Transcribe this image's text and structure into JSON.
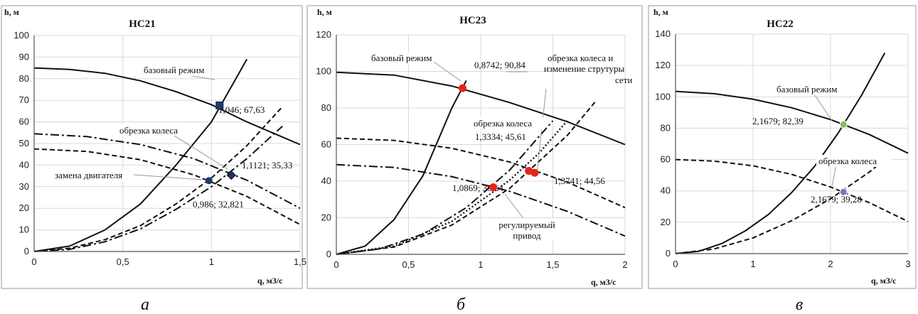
{
  "chart_data": [
    {
      "type": "line",
      "title": "НС21",
      "ylabel": "h, м",
      "xlabel": "q, м3/с",
      "xlim": [
        0,
        1.5
      ],
      "ylim": [
        0,
        100
      ],
      "xticks": [
        "0",
        "0,5",
        "1",
        "1,5"
      ],
      "yticks": [
        "0",
        "10",
        "20",
        "30",
        "40",
        "50",
        "60",
        "70",
        "80",
        "90",
        "100"
      ],
      "caption": "а",
      "series": [
        {
          "style": "solid",
          "x": [
            0,
            0.2,
            0.4,
            0.6,
            0.8,
            1.0,
            1.2,
            1.5
          ],
          "y": [
            85,
            84.3,
            82.5,
            79,
            74,
            68,
            60,
            49.5
          ]
        },
        {
          "style": "solid",
          "x": [
            0,
            0.2,
            0.4,
            0.6,
            0.8,
            1.0,
            1.2
          ],
          "y": [
            0,
            2.5,
            10,
            22,
            40,
            60,
            89
          ]
        },
        {
          "style": "dashdot",
          "x": [
            0,
            0.3,
            0.6,
            0.9,
            1.2,
            1.5
          ],
          "y": [
            54.5,
            53.2,
            49.5,
            43,
            33,
            20
          ]
        },
        {
          "style": "dashed",
          "x": [
            0,
            0.3,
            0.6,
            0.9,
            1.2,
            1.5
          ],
          "y": [
            47.5,
            46.3,
            42.5,
            35.5,
            25.5,
            12.5
          ]
        },
        {
          "style": "dashed",
          "x": [
            0,
            0.2,
            0.4,
            0.6,
            0.8,
            1.0,
            1.2,
            1.4
          ],
          "y": [
            0,
            1.5,
            5.5,
            12,
            22,
            34,
            49,
            67
          ]
        },
        {
          "style": "dashdot",
          "x": [
            0,
            0.2,
            0.4,
            0.6,
            0.8,
            1.0,
            1.2,
            1.4
          ],
          "y": [
            0,
            1,
            4.5,
            10.5,
            19.5,
            30,
            43,
            58
          ]
        }
      ],
      "points": [
        {
          "x": 1.046,
          "y": 67.63,
          "shape": "square",
          "color": "#1f3a6b",
          "label": "1,046; 67,63"
        },
        {
          "x": 1.1121,
          "y": 35.33,
          "shape": "diamond",
          "color": "#1f2f5a",
          "label": "1,1121; 35,33"
        },
        {
          "x": 0.986,
          "y": 32.821,
          "shape": "circle",
          "color": "#1f3a6b",
          "label": "0,986; 32,821"
        }
      ],
      "annotations": [
        "базовый режим",
        "обрезка колеса",
        "замена двигателя"
      ]
    },
    {
      "type": "line",
      "title": "НС23",
      "ylabel": "h, м",
      "xlabel": "q, м3/с",
      "xlim": [
        0,
        2
      ],
      "ylim": [
        0,
        120
      ],
      "xticks": [
        "0",
        "0,5",
        "1",
        "1,5",
        "2"
      ],
      "yticks": [
        "0",
        "20",
        "40",
        "60",
        "80",
        "100",
        "120"
      ],
      "caption": "б",
      "series": [
        {
          "style": "solid",
          "x": [
            0,
            0.4,
            0.8,
            1.2,
            1.6,
            2.0
          ],
          "y": [
            99.5,
            98,
            92,
            83,
            72.5,
            60
          ]
        },
        {
          "style": "solid",
          "x": [
            0,
            0.2,
            0.4,
            0.6,
            0.8,
            0.9
          ],
          "y": [
            0,
            4.5,
            19,
            43,
            80,
            95
          ]
        },
        {
          "style": "dashed",
          "x": [
            0,
            0.4,
            0.8,
            1.2,
            1.6,
            2.0
          ],
          "y": [
            63.5,
            62.3,
            58,
            50.5,
            39.5,
            25.5
          ]
        },
        {
          "style": "dashdot",
          "x": [
            0,
            0.4,
            0.8,
            1.2,
            1.6,
            2.0
          ],
          "y": [
            49,
            47.5,
            42.5,
            34.5,
            23.5,
            10
          ]
        },
        {
          "style": "dashdot",
          "x": [
            0,
            0.3,
            0.6,
            0.9,
            1.2,
            1.5
          ],
          "y": [
            0,
            3,
            11,
            25.5,
            46,
            73
          ]
        },
        {
          "style": "dashed",
          "x": [
            0,
            0.4,
            0.8,
            1.2,
            1.6,
            1.8
          ],
          "y": [
            0,
            4,
            16,
            36,
            65,
            84
          ]
        },
        {
          "style": "dotted",
          "x": [
            0,
            0.4,
            0.8,
            1.2,
            1.4,
            1.6
          ],
          "y": [
            0,
            4.5,
            18,
            40.5,
            55,
            73
          ]
        }
      ],
      "points": [
        {
          "x": 0.8742,
          "y": 90.84,
          "shape": "circle",
          "color": "#e8231c",
          "label": "0,8742; 90,84"
        },
        {
          "x": 1.3334,
          "y": 45.61,
          "shape": "circle",
          "color": "#e8231c",
          "label": "1,3334; 45,61"
        },
        {
          "x": 1.3741,
          "y": 44.56,
          "shape": "circle",
          "color": "#e8231c",
          "label": "1,3741; 44,56"
        },
        {
          "x": 1.0869,
          "y": 36.64,
          "shape": "circle",
          "color": "#e8231c",
          "label": "1,0869; 36,64"
        }
      ],
      "annotations": [
        "базовый режим",
        "обрезка колеса и",
        "изменение струтуры",
        "сети",
        "обрезка колеса",
        "регулируемый",
        "привод"
      ]
    },
    {
      "type": "line",
      "title": "НС22",
      "ylabel": "h, м",
      "xlabel": "q, м3/с",
      "xlim": [
        0,
        3
      ],
      "ylim": [
        0,
        140
      ],
      "xticks": [
        "0",
        "1",
        "2",
        "3"
      ],
      "yticks": [
        "0",
        "20",
        "40",
        "60",
        "80",
        "100",
        "120",
        "140"
      ],
      "caption": "в",
      "series": [
        {
          "style": "solid",
          "x": [
            0,
            0.5,
            1.0,
            1.5,
            2.0,
            2.5,
            3.0
          ],
          "y": [
            103.5,
            102,
            98.5,
            93,
            85.5,
            76,
            64
          ]
        },
        {
          "style": "solid",
          "x": [
            0,
            0.3,
            0.6,
            0.9,
            1.2,
            1.5,
            1.8,
            2.1,
            2.4,
            2.7
          ],
          "y": [
            0,
            1.5,
            6.5,
            14.5,
            25,
            39,
            56,
            77,
            101,
            128
          ]
        },
        {
          "style": "dashed",
          "x": [
            0,
            0.5,
            1.0,
            1.5,
            2.0,
            2.5,
            3.0
          ],
          "y": [
            60,
            59,
            56,
            50.5,
            42.5,
            32.5,
            20.5
          ]
        },
        {
          "style": "dashed",
          "x": [
            0,
            0.5,
            1.0,
            1.5,
            2.0,
            2.5,
            2.75
          ],
          "y": [
            0,
            3,
            10,
            21,
            35,
            52,
            62
          ]
        }
      ],
      "points": [
        {
          "x": 2.1679,
          "y": 82.39,
          "shape": "circle",
          "color": "#8bbd53",
          "label": "2,1679; 82,39"
        },
        {
          "x": 2.1679,
          "y": 39.28,
          "shape": "circle",
          "color": "#8a6fb5",
          "label": "2,1679; 39,28"
        }
      ],
      "annotations": [
        "базовый режим",
        "обрезка колеса"
      ]
    }
  ]
}
